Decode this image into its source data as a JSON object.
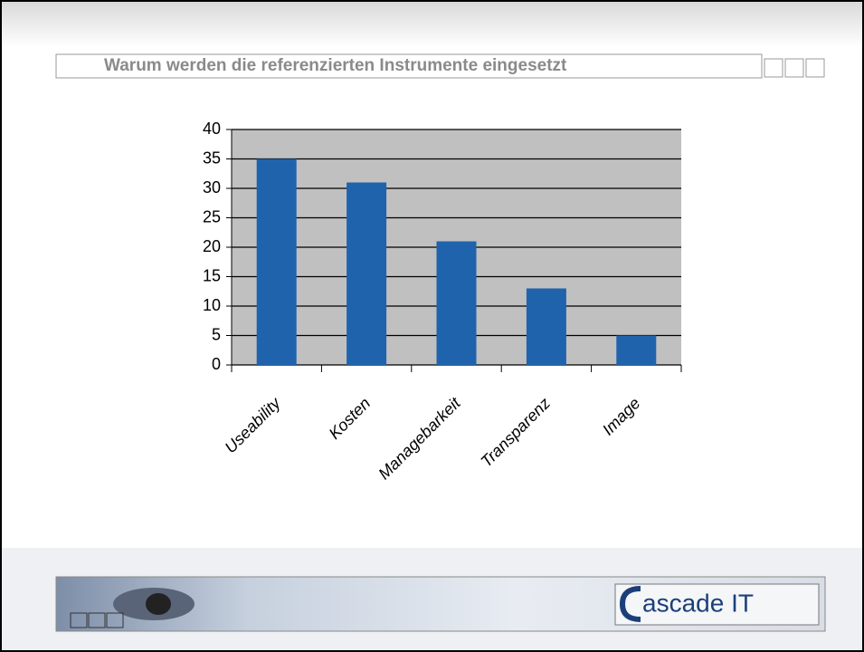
{
  "chart_data": {
    "type": "bar",
    "title": "Warum werden die referenzierten Instrumente eingesetzt",
    "categories": [
      "Useability",
      "Kosten",
      "Managebarkeit",
      "Transparenz",
      "Image"
    ],
    "values": [
      35,
      31,
      21,
      13,
      5
    ],
    "color": "#1f63ad",
    "ylim": [
      0,
      40
    ],
    "yticks": [
      0,
      5,
      10,
      15,
      20,
      25,
      30,
      35,
      40
    ],
    "grid": true
  },
  "logo_text": "ascade IT"
}
